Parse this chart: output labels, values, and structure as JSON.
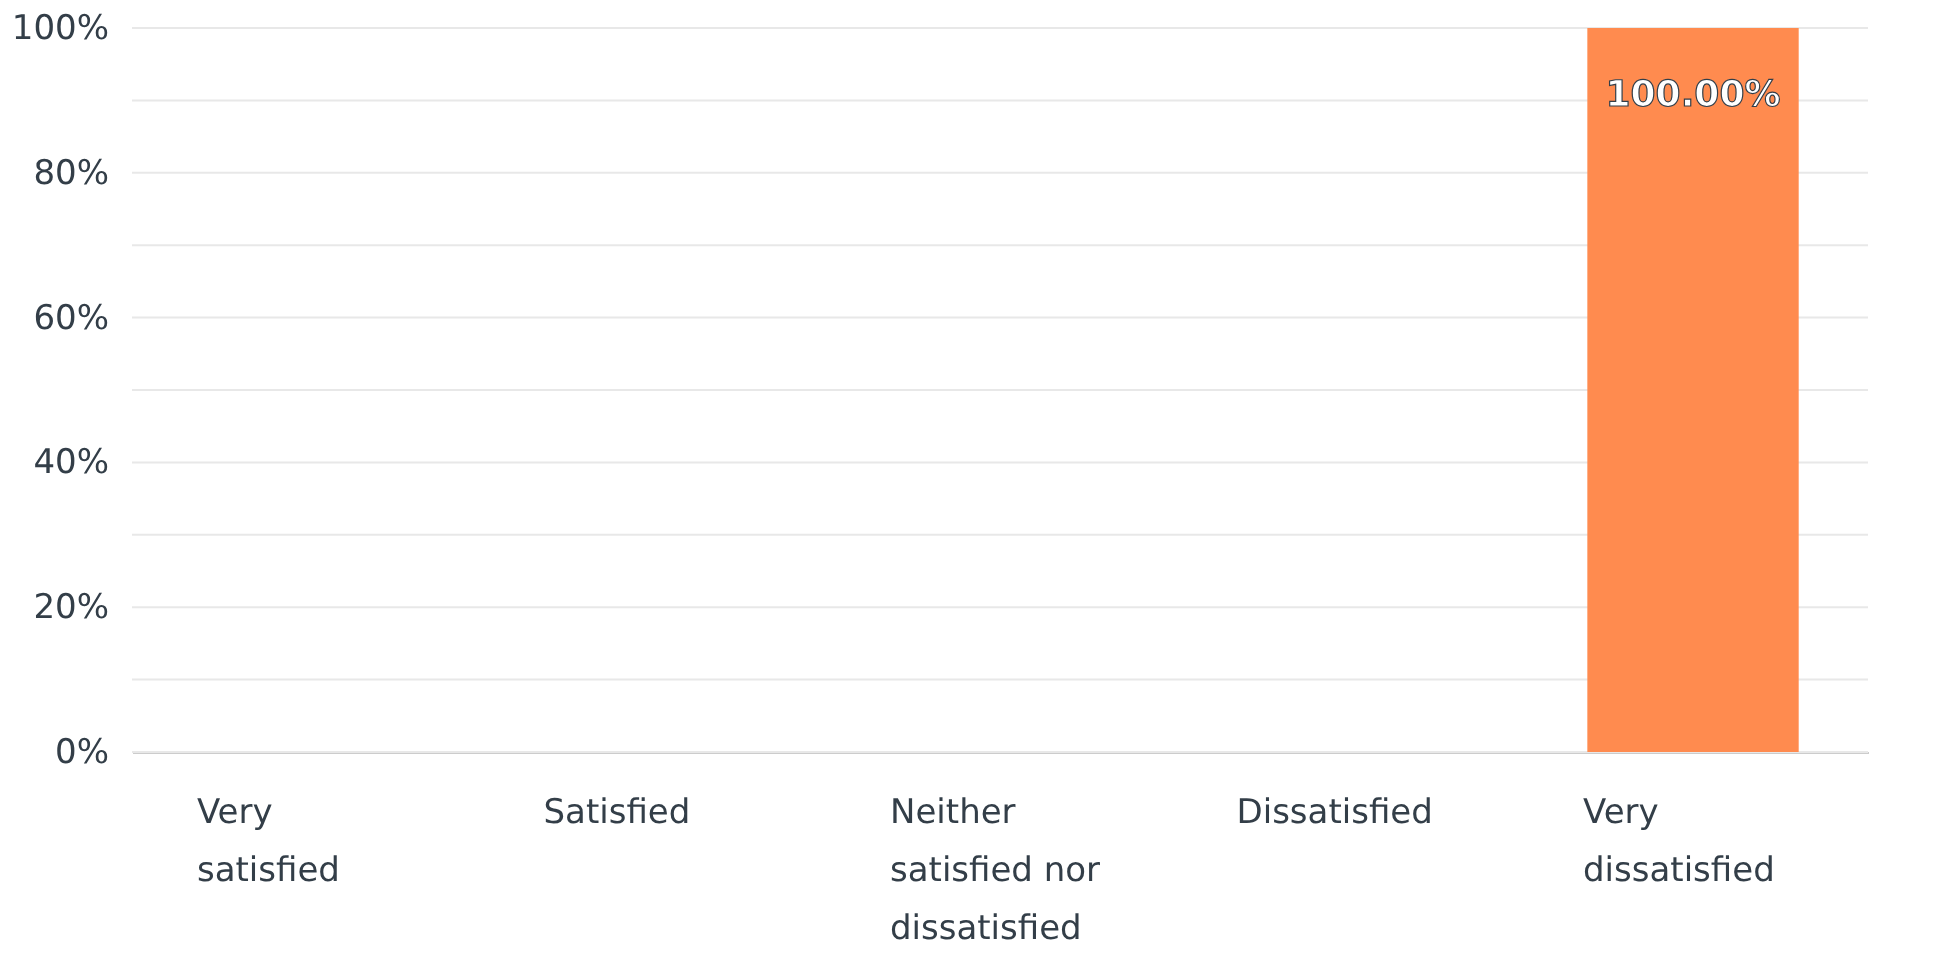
{
  "chart_data": {
    "type": "bar",
    "categories": [
      "Very satisfied",
      "Satisfied",
      "Neither satisfied nor dissatisfied",
      "Dissatisfied",
      "Very dissatisfied"
    ],
    "values": [
      0,
      0,
      0,
      0,
      100
    ],
    "value_labels": [
      null,
      null,
      null,
      null,
      "100.00%"
    ],
    "colors": [
      "#ff8b4f",
      "#ff8b4f",
      "#ff8b4f",
      "#ff8b4f",
      "#ff8b4f"
    ],
    "ylim": [
      0,
      100
    ],
    "yticks": [
      {
        "value": 0,
        "label": "0%"
      },
      {
        "value": 10,
        "label": null
      },
      {
        "value": 20,
        "label": "20%"
      },
      {
        "value": 30,
        "label": null
      },
      {
        "value": 40,
        "label": "40%"
      },
      {
        "value": 50,
        "label": null
      },
      {
        "value": 60,
        "label": "60%"
      },
      {
        "value": 70,
        "label": null
      },
      {
        "value": 80,
        "label": "80%"
      },
      {
        "value": 90,
        "label": null
      },
      {
        "value": 100,
        "label": "100%"
      }
    ],
    "grid": "y"
  }
}
